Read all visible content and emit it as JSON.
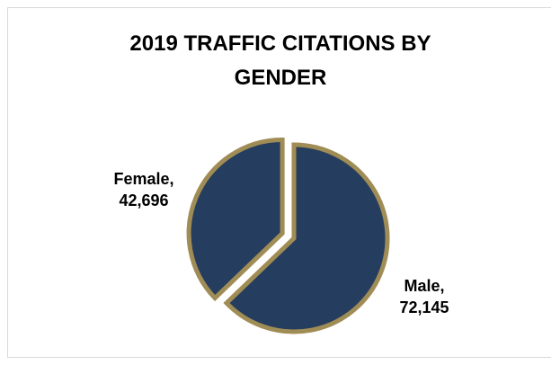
{
  "chart_data": {
    "type": "pie",
    "title": "2019 TRAFFIC CITATIONS BY GENDER",
    "categories": [
      "Female",
      "Male"
    ],
    "values": [
      42696,
      72145
    ],
    "value_labels": [
      "42,696",
      "72,145"
    ],
    "label_separator": ",",
    "colors": [
      "#253d5e",
      "#253d5e"
    ],
    "edge_color": "#a08c55",
    "exploded": [
      true,
      false
    ]
  }
}
